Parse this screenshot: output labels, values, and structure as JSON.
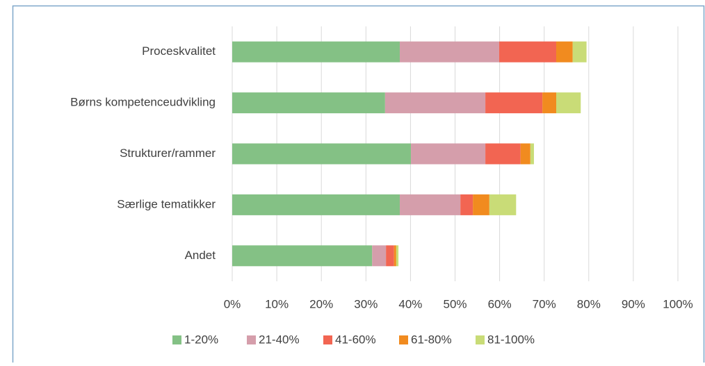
{
  "chart_data": {
    "type": "stacked-barh",
    "categories": [
      "Proceskvalitet",
      "Børns kompetenceudvikling",
      "Strukturer/rammer",
      "Særlige tematikker",
      "Andet"
    ],
    "series": [
      {
        "name": "1-20%",
        "color": "#84c185",
        "values": [
          37.6,
          34.3,
          40.1,
          37.6,
          31.4
        ]
      },
      {
        "name": "21-40%",
        "color": "#d59eab",
        "values": [
          22.3,
          22.5,
          16.7,
          13.6,
          3.1
        ]
      },
      {
        "name": "41-60%",
        "color": "#f26552",
        "values": [
          12.8,
          12.8,
          7.9,
          2.8,
          1.8
        ]
      },
      {
        "name": "61-80%",
        "color": "#f18b1f",
        "values": [
          3.7,
          3.1,
          2.2,
          3.7,
          0.5
        ]
      },
      {
        "name": "81-100%",
        "color": "#c9dc77",
        "values": [
          3.1,
          5.5,
          0.8,
          6.0,
          0.5
        ]
      }
    ],
    "xlim": [
      0,
      100
    ],
    "xticks": [
      {
        "value": 0,
        "label": "0%"
      },
      {
        "value": 10,
        "label": "10%"
      },
      {
        "value": 20,
        "label": "20%"
      },
      {
        "value": 30,
        "label": "30%"
      },
      {
        "value": 40,
        "label": "40%"
      },
      {
        "value": 50,
        "label": "50%"
      },
      {
        "value": 60,
        "label": "60%"
      },
      {
        "value": 70,
        "label": "70%"
      },
      {
        "value": 80,
        "label": "80%"
      },
      {
        "value": 90,
        "label": "90%"
      },
      {
        "value": 100,
        "label": "100%"
      }
    ],
    "grid": true,
    "legend": "bottom"
  }
}
